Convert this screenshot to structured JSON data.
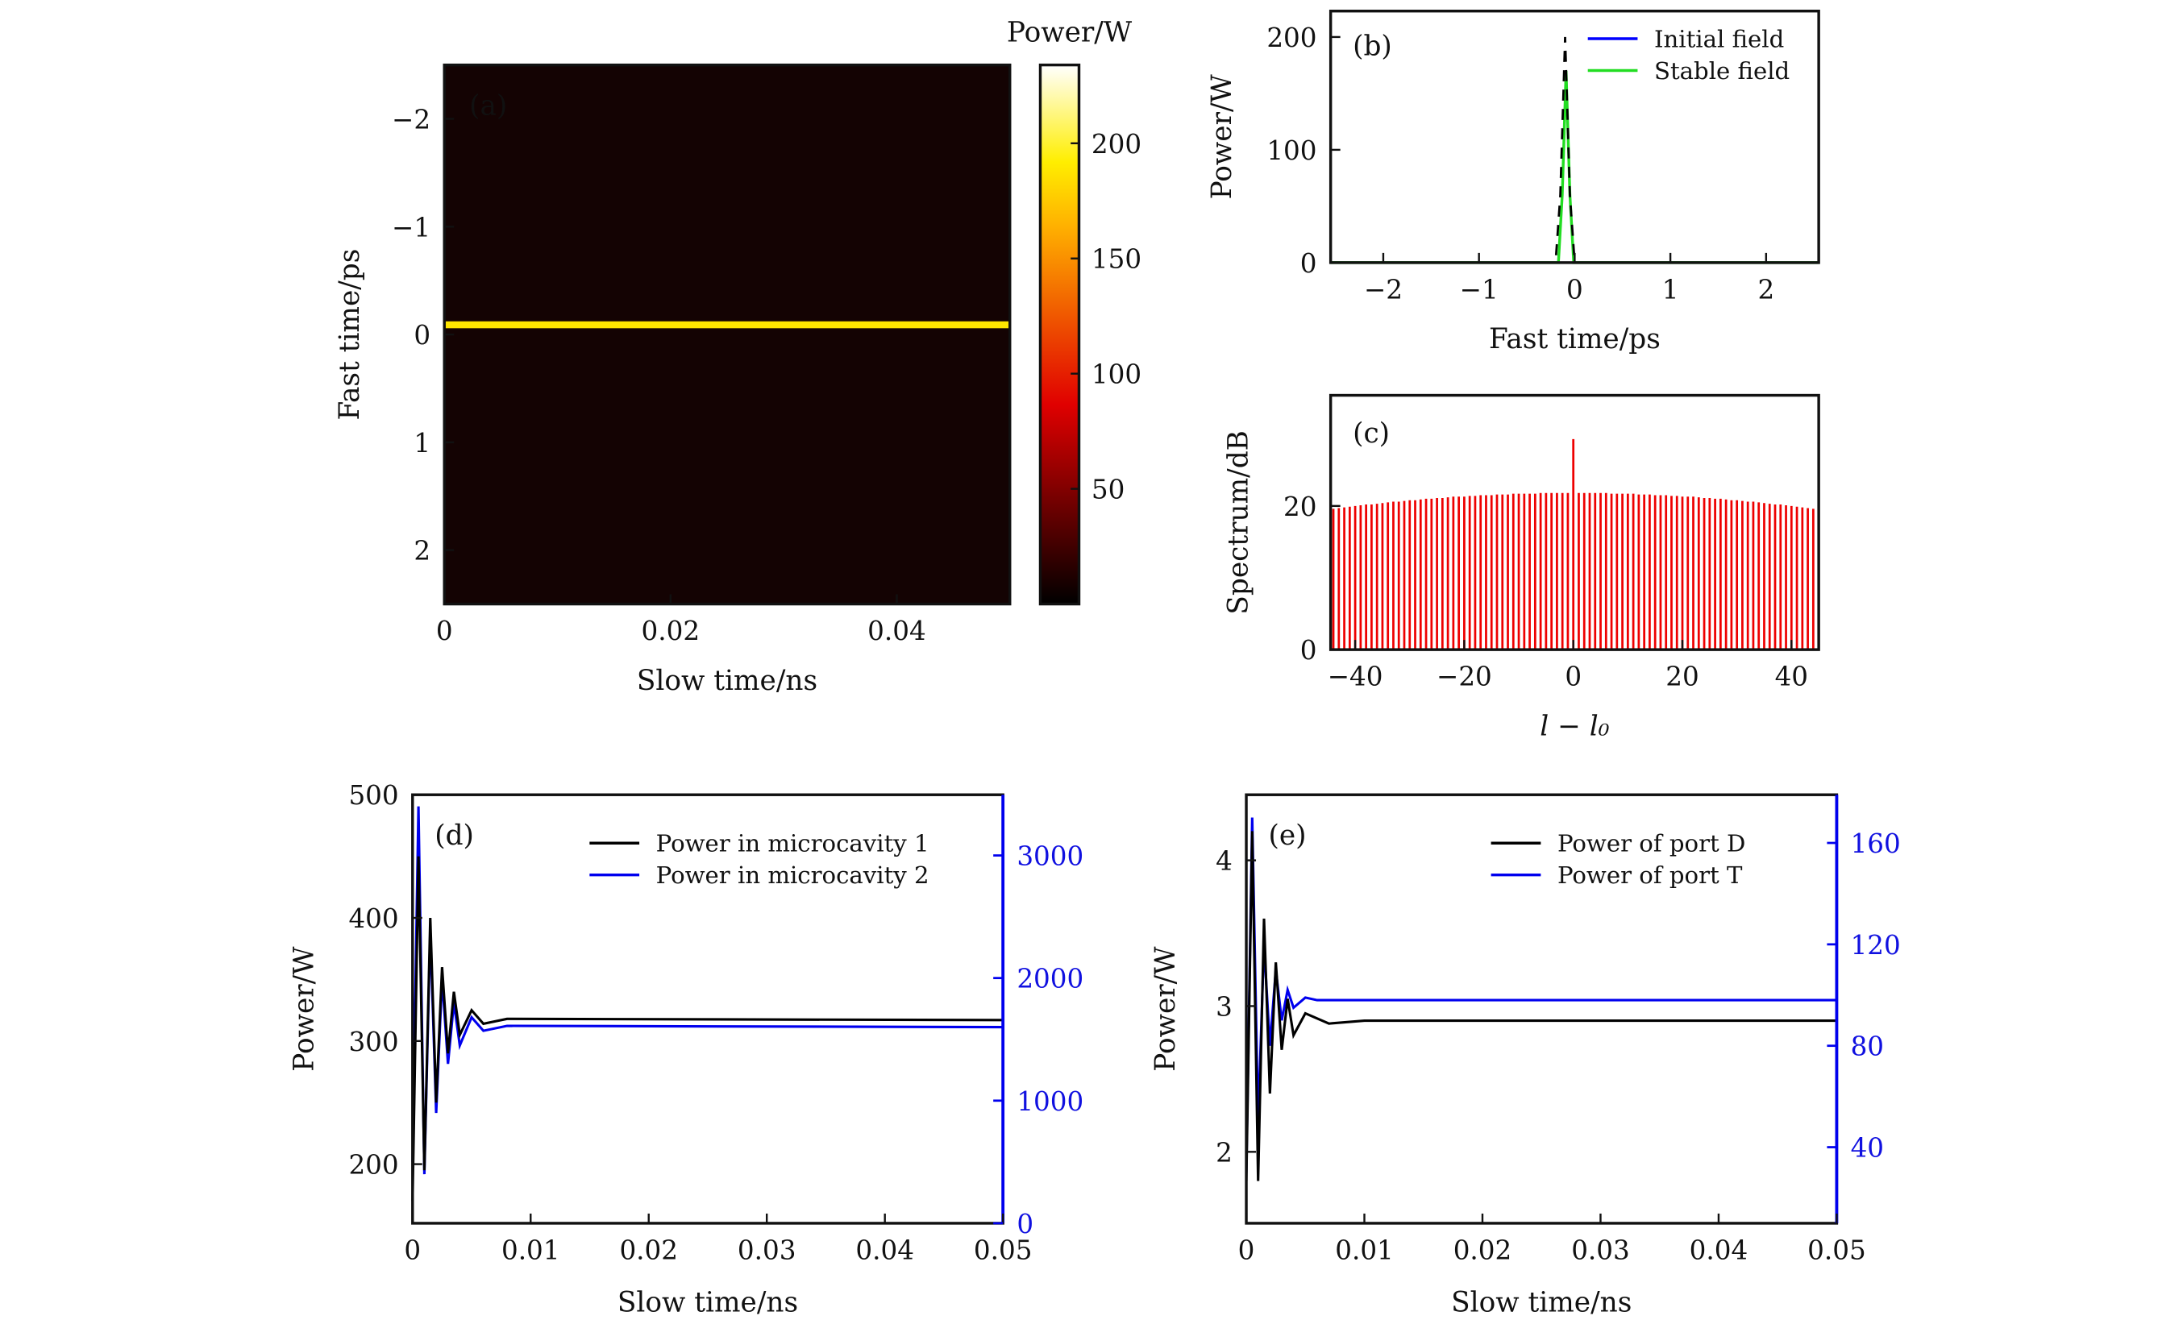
{
  "chart_data": [
    {
      "panel": "(a)",
      "type": "heatmap",
      "xlabel": "Slow time/ns",
      "ylabel": "Fast time/ps",
      "xlim": [
        0,
        0.05
      ],
      "ylim": [
        2.5,
        -2.5
      ],
      "xticks": [
        "0",
        "0.02",
        "0.04"
      ],
      "xtick_values": [
        0,
        0.02,
        0.04
      ],
      "yticks": [
        "−2",
        "−1",
        "0",
        "1",
        "2"
      ],
      "ytick_values": [
        -2,
        -1,
        0,
        1,
        2
      ],
      "background_power": 0,
      "soliton_fast_time": -0.09,
      "soliton_power": 200,
      "colorbar": {
        "label": "Power/W",
        "range": [
          0,
          234
        ],
        "ticks": [
          "50",
          "100",
          "150",
          "200"
        ],
        "tick_values": [
          50,
          100,
          150,
          200
        ],
        "colormap": "hot"
      }
    },
    {
      "panel": "(b)",
      "type": "line",
      "xlabel": "Fast time/ps",
      "ylabel": "Power/W",
      "xlim": [
        -2.55,
        2.55
      ],
      "ylim": [
        0,
        223
      ],
      "xticks": [
        "−2",
        "−1",
        "0",
        "1",
        "2"
      ],
      "xtick_values": [
        -2,
        -1,
        0,
        1,
        2
      ],
      "yticks": [
        "0",
        "100",
        "200"
      ],
      "ytick_values": [
        0,
        100,
        200
      ],
      "legend": "top-right",
      "series": [
        {
          "name": "Initial field",
          "color": "#0000ff",
          "style": "dashed-black",
          "x": [
            -2.55,
            -0.2,
            -0.15,
            -0.1,
            -0.05,
            0.0,
            2.55
          ],
          "y": [
            0,
            0,
            60,
            200,
            60,
            0,
            0
          ]
        },
        {
          "name": "Stable field",
          "color": "#22dd22",
          "x": [
            -2.55,
            -0.17,
            -0.13,
            -0.09,
            -0.05,
            -0.01,
            2.55
          ],
          "y": [
            0,
            0,
            60,
            170,
            60,
            0,
            0
          ]
        }
      ]
    },
    {
      "panel": "(c)",
      "type": "bar",
      "xlabel": "l − l₀",
      "ylabel": "Spectrum/dB",
      "xlim": [
        -44.5,
        45
      ],
      "ylim": [
        0,
        35.4
      ],
      "xticks": [
        "−40",
        "−20",
        "0",
        "20",
        "40"
      ],
      "xtick_values": [
        -40,
        -20,
        0,
        20,
        40
      ],
      "yticks": [
        "0",
        "20"
      ],
      "ytick_values": [
        0,
        20
      ],
      "color": "#ee0000",
      "x": [
        -44,
        -43,
        -42,
        -41,
        -40,
        -39,
        -38,
        -37,
        -36,
        -35,
        -34,
        -33,
        -32,
        -31,
        -30,
        -29,
        -28,
        -27,
        -26,
        -25,
        -24,
        -23,
        -22,
        -21,
        -20,
        -19,
        -18,
        -17,
        -16,
        -15,
        -14,
        -13,
        -12,
        -11,
        -10,
        -9,
        -8,
        -7,
        -6,
        -5,
        -4,
        -3,
        -2,
        -1,
        0,
        1,
        2,
        3,
        4,
        5,
        6,
        7,
        8,
        9,
        10,
        11,
        12,
        13,
        14,
        15,
        16,
        17,
        18,
        19,
        20,
        21,
        22,
        23,
        24,
        25,
        26,
        27,
        28,
        29,
        30,
        31,
        32,
        33,
        34,
        35,
        36,
        37,
        38,
        39,
        40,
        41,
        42,
        43,
        44
      ],
      "values": [
        19.6,
        19.7,
        19.8,
        19.9,
        20.0,
        20.1,
        20.2,
        20.2,
        20.3,
        20.4,
        20.5,
        20.6,
        20.6,
        20.7,
        20.8,
        20.8,
        20.9,
        21.0,
        21.0,
        21.1,
        21.1,
        21.2,
        21.3,
        21.3,
        21.3,
        21.4,
        21.4,
        21.5,
        21.5,
        21.5,
        21.6,
        21.6,
        21.6,
        21.7,
        21.7,
        21.7,
        21.7,
        21.7,
        21.8,
        21.8,
        21.8,
        21.8,
        21.8,
        21.8,
        29.3,
        21.8,
        21.8,
        21.8,
        21.8,
        21.8,
        21.8,
        21.7,
        21.7,
        21.7,
        21.7,
        21.7,
        21.6,
        21.6,
        21.6,
        21.5,
        21.5,
        21.5,
        21.4,
        21.4,
        21.3,
        21.3,
        21.3,
        21.2,
        21.1,
        21.1,
        21.0,
        21.0,
        20.9,
        20.8,
        20.8,
        20.7,
        20.6,
        20.6,
        20.5,
        20.4,
        20.3,
        20.2,
        20.2,
        20.1,
        20.0,
        19.9,
        19.8,
        19.7,
        19.6
      ]
    },
    {
      "panel": "(d)",
      "type": "line",
      "xlabel": "Slow time/ns",
      "ylabel": "Power/W",
      "xlim": [
        0,
        0.05
      ],
      "ylim": [
        152,
        500
      ],
      "ylim_right": [
        0,
        3495
      ],
      "xticks": [
        "0",
        "0.01",
        "0.02",
        "0.03",
        "0.04",
        "0.05"
      ],
      "xtick_values": [
        0,
        0.01,
        0.02,
        0.03,
        0.04,
        0.05
      ],
      "yticks": [
        "200",
        "300",
        "400",
        "500"
      ],
      "ytick_values": [
        200,
        300,
        400,
        500
      ],
      "yticks_right": [
        "0",
        "1000",
        "2000",
        "3000"
      ],
      "ytick_values_right": [
        0,
        1000,
        2000,
        3000
      ],
      "right_axis_color": "#0000ee",
      "legend": "top-right",
      "series": [
        {
          "name": "Power in microcavity 1",
          "color": "#000000",
          "axis": "left",
          "x": [
            0,
            0.0005,
            0.001,
            0.0015,
            0.002,
            0.0025,
            0.003,
            0.0035,
            0.004,
            0.005,
            0.006,
            0.008,
            0.05
          ],
          "y": [
            170,
            450,
            195,
            400,
            250,
            360,
            290,
            340,
            305,
            325,
            314,
            318,
            317
          ]
        },
        {
          "name": "Power in microcavity 2",
          "color": "#0000ee",
          "axis": "right",
          "x": [
            0,
            0.0005,
            0.001,
            0.0015,
            0.002,
            0.0025,
            0.003,
            0.0035,
            0.004,
            0.005,
            0.006,
            0.008,
            0.05
          ],
          "y": [
            500,
            3400,
            400,
            2400,
            900,
            2000,
            1300,
            1800,
            1450,
            1680,
            1570,
            1610,
            1600
          ]
        }
      ]
    },
    {
      "panel": "(e)",
      "type": "line",
      "xlabel": "Slow time/ns",
      "ylabel": "Power/W",
      "xlim": [
        0,
        0.05
      ],
      "ylim": [
        1.51,
        4.45
      ],
      "ylim_right": [
        10,
        179
      ],
      "xticks": [
        "0",
        "0.01",
        "0.02",
        "0.03",
        "0.04",
        "0.05"
      ],
      "xtick_values": [
        0,
        0.01,
        0.02,
        0.03,
        0.04,
        0.05
      ],
      "yticks": [
        "2",
        "3",
        "4"
      ],
      "ytick_values": [
        2,
        3,
        4
      ],
      "yticks_right": [
        "40",
        "80",
        "120",
        "160"
      ],
      "ytick_values_right": [
        40,
        80,
        120,
        160
      ],
      "right_axis_color": "#0000ee",
      "legend": "top-right",
      "series": [
        {
          "name": "Power of port D",
          "color": "#000000",
          "axis": "left",
          "x": [
            0,
            0.0005,
            0.001,
            0.0015,
            0.002,
            0.0025,
            0.003,
            0.0035,
            0.004,
            0.005,
            0.007,
            0.01,
            0.05
          ],
          "y": [
            1.8,
            4.2,
            1.8,
            3.6,
            2.4,
            3.3,
            2.7,
            3.05,
            2.8,
            2.95,
            2.88,
            2.9,
            2.9
          ]
        },
        {
          "name": "Power of port T",
          "color": "#0000ee",
          "axis": "right",
          "x": [
            0,
            0.0005,
            0.001,
            0.0015,
            0.002,
            0.0025,
            0.003,
            0.0035,
            0.004,
            0.005,
            0.006,
            0.05
          ],
          "y": [
            30,
            170,
            50,
            120,
            80,
            110,
            90,
            102,
            95,
            99,
            98,
            98
          ]
        }
      ]
    }
  ]
}
